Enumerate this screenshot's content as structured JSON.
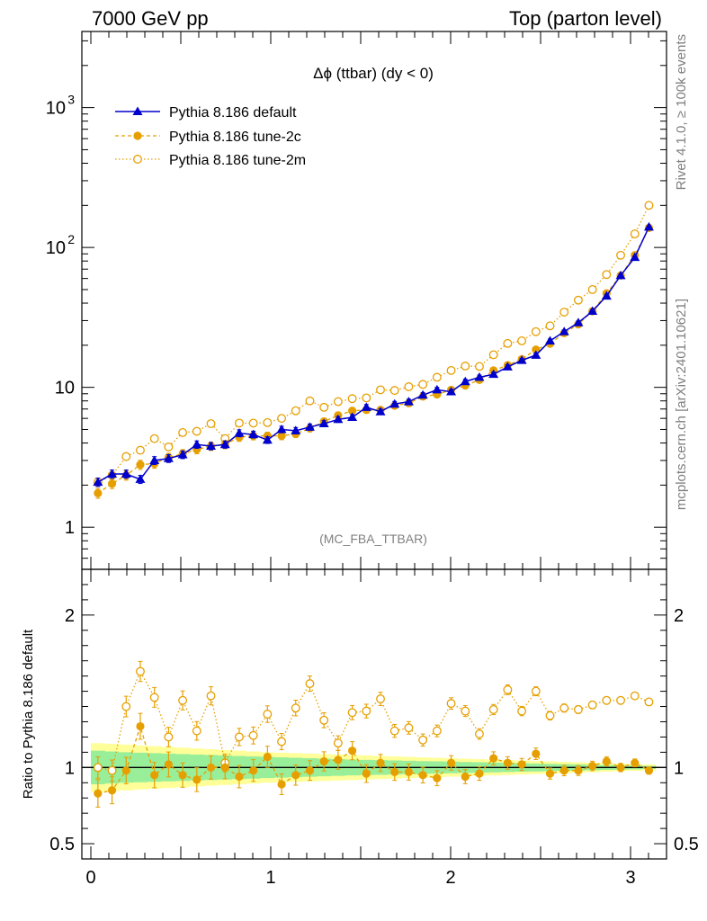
{
  "header": {
    "left": "7000 GeV pp",
    "right": "Top (parton level)"
  },
  "side": {
    "rivet": "Rivet 4.1.0, ≥ 100k events",
    "mcplots": "mcplots.cern.ch [arXiv:2401.10621]"
  },
  "chart_data": {
    "type": "line",
    "title": "Δϕ (ttbar) (dy < 0)",
    "watermark": "(MC_FBA_TTBAR)",
    "xlabel": "",
    "ylabel": "",
    "xlim": [
      -0.05,
      3.2
    ],
    "ylim": [
      0.5,
      3500
    ],
    "yscale": "log",
    "ytick_values": [
      1,
      10,
      100,
      1000
    ],
    "ytick_labels": [
      {
        "base": "1",
        "exp": ""
      },
      {
        "base": "10",
        "exp": ""
      },
      {
        "base": "10",
        "exp": "2"
      },
      {
        "base": "10",
        "exp": "3"
      }
    ],
    "xtick_values": [
      0,
      1,
      2,
      3
    ],
    "xtick_labels": [
      "0",
      "1",
      "2",
      "3"
    ],
    "x": [
      0.0393,
      0.1178,
      0.1963,
      0.2749,
      0.3534,
      0.432,
      0.5105,
      0.589,
      0.6676,
      0.7461,
      0.8247,
      0.9032,
      0.9817,
      1.0603,
      1.1388,
      1.2174,
      1.2959,
      1.3744,
      1.453,
      1.5315,
      1.6101,
      1.6886,
      1.7671,
      1.8457,
      1.9242,
      2.0028,
      2.0813,
      2.1598,
      2.2384,
      2.3169,
      2.3955,
      2.474,
      2.5525,
      2.6311,
      2.7096,
      2.7882,
      2.8667,
      2.9452,
      3.0238,
      3.1023
    ],
    "series": [
      {
        "name": "Pythia 8.186 default",
        "color": "#0000cc",
        "marker": "triangle",
        "values": [
          2.1,
          2.4,
          2.4,
          2.2,
          3.0,
          3.1,
          3.3,
          3.9,
          3.8,
          3.9,
          4.7,
          4.6,
          4.2,
          5.0,
          4.9,
          5.2,
          5.5,
          5.9,
          6.1,
          7.2,
          6.7,
          7.6,
          7.9,
          8.8,
          9.6,
          9.3,
          11.0,
          11.8,
          12.4,
          14.0,
          15.6,
          17.0,
          21.5,
          25.0,
          29.0,
          35.0,
          45.0,
          63.0,
          85.0,
          140.0
        ]
      },
      {
        "name": "Pythia 8.186 tune-2c",
        "color": "#e69f00",
        "marker": "filled-circle",
        "values": [
          1.75,
          2.05,
          2.35,
          2.8,
          2.85,
          3.15,
          3.35,
          3.6,
          3.8,
          3.9,
          4.4,
          4.5,
          4.5,
          4.5,
          4.65,
          5.1,
          5.7,
          6.3,
          6.8,
          6.9,
          6.9,
          7.4,
          7.7,
          8.6,
          8.9,
          9.6,
          10.3,
          11.3,
          13.2,
          14.4,
          15.9,
          18.6,
          20.5,
          24.4,
          28.2,
          35.0,
          47.0,
          63.0,
          88.0,
          138.0
        ]
      },
      {
        "name": "Pythia 8.186 tune-2m",
        "color": "#e69f00",
        "marker": "open-circle",
        "values": [
          2.1,
          2.35,
          3.2,
          3.55,
          4.3,
          3.75,
          4.75,
          4.85,
          5.5,
          4.3,
          5.55,
          5.55,
          5.6,
          6.0,
          6.8,
          8.0,
          7.2,
          7.9,
          8.3,
          8.4,
          9.6,
          9.5,
          10.1,
          10.5,
          11.8,
          13.2,
          14.2,
          14.1,
          17.1,
          20.6,
          21.5,
          25.0,
          27.5,
          34.5,
          42.0,
          50.0,
          64.0,
          88.0,
          125.0,
          200.0
        ]
      }
    ],
    "ratio": {
      "ylabel": "Ratio to Pythia 8.186 default",
      "ylim": [
        0.4,
        2.3
      ],
      "ytick_values": [
        0.5,
        1,
        2
      ],
      "ytick_labels": [
        "0.5",
        "1",
        "2"
      ],
      "band_yellow_halfwidth": [
        0.16,
        0.155,
        0.15,
        0.145,
        0.14,
        0.135,
        0.13,
        0.125,
        0.12,
        0.115,
        0.11,
        0.105,
        0.1,
        0.097,
        0.094,
        0.091,
        0.088,
        0.085,
        0.082,
        0.079,
        0.076,
        0.073,
        0.07,
        0.067,
        0.064,
        0.061,
        0.058,
        0.055,
        0.052,
        0.049,
        0.046,
        0.043,
        0.04,
        0.037,
        0.034,
        0.031,
        0.028,
        0.025,
        0.022,
        0.02
      ],
      "band_green_halfwidth": [
        0.11,
        0.105,
        0.1,
        0.097,
        0.094,
        0.091,
        0.088,
        0.085,
        0.082,
        0.079,
        0.076,
        0.073,
        0.07,
        0.067,
        0.064,
        0.061,
        0.058,
        0.055,
        0.052,
        0.05,
        0.048,
        0.046,
        0.044,
        0.042,
        0.04,
        0.038,
        0.036,
        0.034,
        0.032,
        0.03,
        0.028,
        0.026,
        0.024,
        0.022,
        0.02,
        0.018,
        0.016,
        0.014,
        0.012,
        0.01
      ],
      "series": [
        {
          "name": "tune-2c / default",
          "color": "#e69f00",
          "marker": "filled-circle",
          "values": [
            0.83,
            0.85,
            0.98,
            1.27,
            0.95,
            1.02,
            0.95,
            0.92,
            1.0,
            1.0,
            0.94,
            0.98,
            1.07,
            0.89,
            0.95,
            0.98,
            1.04,
            1.05,
            1.11,
            0.96,
            1.03,
            0.97,
            0.97,
            0.95,
            0.93,
            1.03,
            0.94,
            0.96,
            1.06,
            1.03,
            1.02,
            1.09,
            0.96,
            0.98,
            0.98,
            1.01,
            1.04,
            1.0,
            1.03,
            0.98
          ]
        },
        {
          "name": "tune-2m / default",
          "color": "#e69f00",
          "marker": "open-circle",
          "values": [
            1.0,
            0.98,
            1.4,
            1.63,
            1.46,
            1.2,
            1.44,
            1.24,
            1.47,
            1.03,
            1.2,
            1.21,
            1.35,
            1.17,
            1.39,
            1.55,
            1.31,
            1.16,
            1.36,
            1.37,
            1.45,
            1.24,
            1.26,
            1.18,
            1.24,
            1.42,
            1.37,
            1.22,
            1.38,
            1.51,
            1.37,
            1.5,
            1.34,
            1.39,
            1.38,
            1.41,
            1.44,
            1.44,
            1.47,
            1.43
          ]
        }
      ]
    }
  }
}
